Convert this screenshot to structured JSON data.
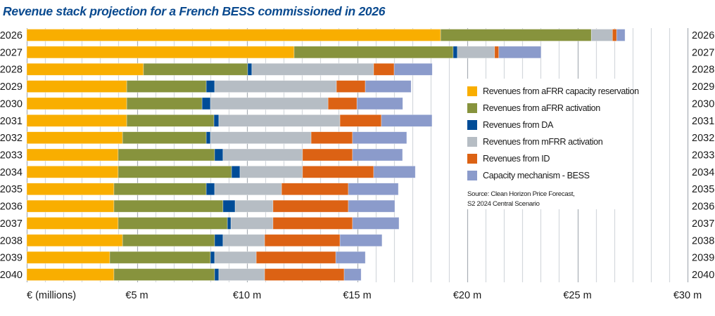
{
  "chart_data": {
    "type": "bar",
    "orientation": "horizontal",
    "stacked": true,
    "title": "Revenue stack projection for a French BESS commissioned in 2026",
    "xlabel": "€ (millions)",
    "ylabel": "",
    "xlim": [
      0,
      30
    ],
    "x_tick_labels": [
      {
        "value": 5,
        "label": "€5 m"
      },
      {
        "value": 10,
        "label": "€10 m"
      },
      {
        "value": 15,
        "label": "€15 m"
      },
      {
        "value": 20,
        "label": "€20 m"
      },
      {
        "value": 25,
        "label": "€25 m"
      },
      {
        "value": 30,
        "label": "€30 m"
      }
    ],
    "minor_ticks_per_major": 6,
    "grid": true,
    "legend_position": "right",
    "categories": [
      "2026",
      "2027",
      "2028",
      "2029",
      "2030",
      "2031",
      "2032",
      "2033",
      "2034",
      "2035",
      "2036",
      "2037",
      "2038",
      "2039",
      "2040"
    ],
    "series": [
      {
        "name": "Revenues from aFRR capacity reservation",
        "color": "#f9ae00",
        "values": [
          18.79,
          12.14,
          5.3,
          4.54,
          4.54,
          4.54,
          4.35,
          4.15,
          4.15,
          3.96,
          3.96,
          4.15,
          4.35,
          3.77,
          3.96
        ]
      },
      {
        "name": "Revenues from aFRR activation",
        "color": "#87933d",
        "values": [
          6.84,
          7.22,
          4.73,
          3.61,
          3.42,
          3.96,
          3.8,
          4.38,
          5.15,
          4.19,
          4.95,
          4.96,
          4.18,
          4.57,
          4.57
        ]
      },
      {
        "name": "Revenues from DA",
        "color": "#004c97",
        "values": [
          0.0,
          0.19,
          0.19,
          0.38,
          0.38,
          0.22,
          0.19,
          0.38,
          0.38,
          0.38,
          0.55,
          0.16,
          0.38,
          0.19,
          0.19
        ]
      },
      {
        "name": "Revenues from mFRR activation",
        "color": "#b6bdc4",
        "values": [
          0.96,
          1.69,
          5.53,
          5.53,
          5.34,
          5.5,
          4.57,
          3.61,
          2.84,
          3.04,
          1.72,
          1.91,
          1.89,
          1.89,
          2.08
        ]
      },
      {
        "name": "Revenues from ID",
        "color": "#dc6214",
        "values": [
          0.19,
          0.19,
          0.93,
          1.31,
          1.31,
          1.88,
          1.88,
          2.27,
          3.23,
          3.03,
          3.42,
          3.61,
          3.42,
          3.61,
          3.61
        ]
      },
      {
        "name": "Capacity mechanism - BESS",
        "color": "#8b9bcb",
        "values": [
          0.38,
          1.92,
          1.73,
          2.08,
          2.08,
          2.3,
          2.46,
          2.27,
          1.89,
          2.27,
          2.11,
          2.11,
          1.91,
          1.34,
          0.77
        ]
      }
    ],
    "annotations": [
      "Source: Clean Horizon Price Forecast,",
      "S2 2024 Central Scenario"
    ]
  },
  "legend": {
    "items": [
      {
        "label": "Revenues from aFRR capacity reservation",
        "color": "#f9ae00"
      },
      {
        "label": "Revenues from aFRR activation",
        "color": "#87933d"
      },
      {
        "label": "Revenues from DA",
        "color": "#004c97"
      },
      {
        "label": "Revenues from mFRR activation",
        "color": "#b6bdc4"
      },
      {
        "label": "Revenues from ID",
        "color": "#dc6214"
      },
      {
        "label": "Capacity mechanism - BESS",
        "color": "#8b9bcb"
      }
    ],
    "source_line1": "Source: Clean Horizon Price Forecast,",
    "source_line2": "S2 2024 Central Scenario"
  },
  "colors": {
    "title": "#0a4a8f",
    "grid_minor": "#d4d8dc",
    "grid_major": "#a8aeb4"
  }
}
